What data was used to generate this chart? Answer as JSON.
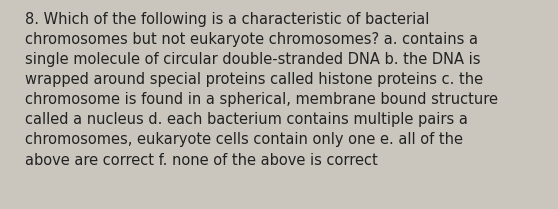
{
  "text": "8. Which of the following is a characteristic of bacterial chromosomes but not eukaryote chromosomes? a. contains a single molecule of circular double-stranded DNA b. the DNA is wrapped around special proteins called histone proteins c. the chromosome is found in a spherical, membrane bound structure called a nucleus d. each bacterium contains multiple pairs a chromosomes, eukaryote cells contain only one e. all of the above are correct f. none of the above is correct",
  "lines": [
    "8. Which of the following is a characteristic of bacterial",
    "chromosomes but not eukaryote chromosomes? a. contains a",
    "single molecule of circular double-stranded DNA b. the DNA is",
    "wrapped around special proteins called histone proteins c. the",
    "chromosome is found in a spherical, membrane bound structure",
    "called a nucleus d. each bacterium contains multiple pairs a",
    "chromosomes, eukaryote cells contain only one e. all of the",
    "above are correct f. none of the above is correct"
  ],
  "background_color": "#cac6be",
  "text_color": "#222222",
  "font_size": 10.5,
  "fig_width": 5.58,
  "fig_height": 2.09,
  "dpi": 100
}
